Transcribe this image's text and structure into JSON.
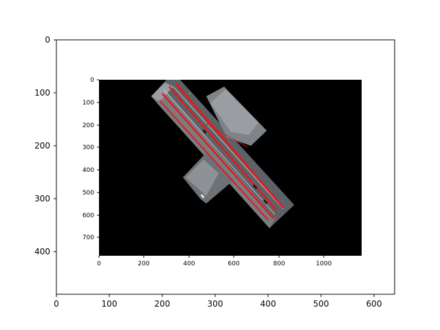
{
  "outer_axes": {
    "x_ticks": [
      "0",
      "100",
      "200",
      "300",
      "400",
      "500",
      "600"
    ],
    "y_ticks": [
      "0",
      "100",
      "200",
      "300",
      "400"
    ]
  },
  "inner_axes": {
    "x_ticks": [
      "0",
      "200",
      "400",
      "600",
      "800",
      "1000"
    ],
    "y_ticks": [
      "0",
      "100",
      "200",
      "300",
      "400",
      "500",
      "600",
      "700"
    ]
  },
  "image": {
    "description_icon": "aerial-road-intersection-image",
    "background_color": "#000000",
    "lane_marking_color": "#e3191c"
  }
}
